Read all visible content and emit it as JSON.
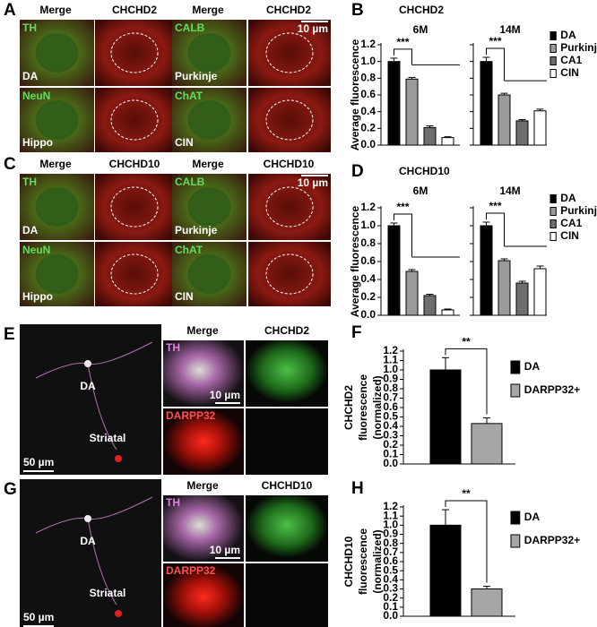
{
  "figures": [
    {
      "letter": "A",
      "headers": [
        "Merge",
        "CHCHD2",
        "Merge",
        "CHCHD2"
      ],
      "scale": "10 µm",
      "tiles": [
        {
          "stain": "TH",
          "cell": "DA"
        },
        {
          "stain": "CALB",
          "cell": "Purkinje"
        },
        {
          "stain": "NeuN",
          "cell": "Hippo"
        },
        {
          "stain": "ChAT",
          "cell": "CIN"
        }
      ]
    },
    {
      "letter": "C",
      "headers": [
        "Merge",
        "CHCHD10",
        "Merge",
        "CHCHD10"
      ],
      "scale": "10 µm",
      "tiles": [
        {
          "stain": "TH",
          "cell": "DA"
        },
        {
          "stain": "CALB",
          "cell": "Purkinje"
        },
        {
          "stain": "NeuN",
          "cell": "Hippo"
        },
        {
          "stain": "ChAT",
          "cell": "CIN"
        }
      ]
    },
    {
      "letter": "E",
      "labels": [
        "DA",
        "Striatal"
      ],
      "overview_scale": "50 µm",
      "headers": [
        "Merge",
        "CHCHD2"
      ],
      "stains": [
        "TH",
        "DARPP32"
      ],
      "scale": "10 µm"
    },
    {
      "letter": "G",
      "labels": [
        "DA",
        "Striatal"
      ],
      "overview_scale": "50 µm",
      "headers": [
        "Merge",
        "CHCHD10"
      ],
      "stains": [
        "TH",
        "DARPP32"
      ],
      "scale": "10 µm"
    }
  ],
  "chart_data": [
    {
      "type": "bar",
      "letter": "B",
      "title": "CHCHD2",
      "ylabel": "Average fluorescence",
      "categories": [
        "6M",
        "14M"
      ],
      "series": [
        {
          "name": "DA",
          "color": "#000000",
          "values": [
            1.0,
            1.0
          ],
          "errors": [
            0.04,
            0.05
          ]
        },
        {
          "name": "Purkinje",
          "color": "#9a9a9a",
          "values": [
            0.79,
            0.6
          ],
          "errors": [
            0.02,
            0.02
          ]
        },
        {
          "name": "CA1",
          "color": "#6e6e6e",
          "values": [
            0.21,
            0.29
          ],
          "errors": [
            0.02,
            0.015
          ]
        },
        {
          "name": "CIN",
          "color": "#ffffff",
          "values": [
            0.09,
            0.41
          ],
          "errors": [
            0.01,
            0.02
          ]
        }
      ],
      "ylim": [
        0,
        1.2
      ],
      "yticks": [
        {
          "value": 0,
          "label": "0.0"
        },
        0.2,
        0.4,
        0.6,
        0.8,
        {
          "value": 1,
          "label": "1.0"
        },
        1.2
      ],
      "annotations": [
        "***",
        "***"
      ]
    },
    {
      "type": "bar",
      "letter": "D",
      "title": "CHCHD10",
      "ylabel": "Average fluorescence",
      "categories": [
        "6M",
        "14M"
      ],
      "series": [
        {
          "name": "DA",
          "color": "#000000",
          "values": [
            1.0,
            1.0
          ],
          "errors": [
            0.03,
            0.04
          ]
        },
        {
          "name": "Purkinje",
          "color": "#9a9a9a",
          "values": [
            0.49,
            0.61
          ],
          "errors": [
            0.02,
            0.02
          ]
        },
        {
          "name": "CA1",
          "color": "#6e6e6e",
          "values": [
            0.22,
            0.36
          ],
          "errors": [
            0.015,
            0.02
          ]
        },
        {
          "name": "CIN",
          "color": "#ffffff",
          "values": [
            0.06,
            0.52
          ],
          "errors": [
            0.01,
            0.03
          ]
        }
      ],
      "ylim": [
        0,
        1.2
      ],
      "yticks": [
        {
          "value": 0,
          "label": "0.0"
        },
        0.2,
        0.4,
        0.6,
        0.8,
        {
          "value": 1,
          "label": "1.0"
        },
        1.2
      ],
      "annotations": [
        "***",
        "***"
      ]
    },
    {
      "type": "bar",
      "letter": "F",
      "ylabel": [
        "CHCHD2",
        "fluorescence",
        "(normalized)"
      ],
      "series": [
        {
          "name": "DA",
          "color": "#000000",
          "values": [
            1.0
          ],
          "errors": [
            0.13
          ]
        },
        {
          "name": "DARPP32+",
          "color": "#a6a6a6",
          "values": [
            0.43
          ],
          "errors": [
            0.06
          ]
        }
      ],
      "ylim": [
        0,
        1.2
      ],
      "yticks": [
        {
          "value": 0,
          "label": "0.0"
        },
        0.1,
        0.2,
        0.3,
        0.4,
        0.5,
        0.6,
        0.7,
        0.8,
        0.9,
        {
          "value": 1,
          "label": "1.0"
        },
        1.1,
        1.2
      ],
      "annotations": [
        "**"
      ]
    },
    {
      "type": "bar",
      "letter": "H",
      "ylabel": [
        "CHCHD10",
        "fluorescence",
        "(normalized)"
      ],
      "series": [
        {
          "name": "DA",
          "color": "#000000",
          "values": [
            1.0
          ],
          "errors": [
            0.17
          ]
        },
        {
          "name": "DARPP32+",
          "color": "#a6a6a6",
          "values": [
            0.3
          ],
          "errors": [
            0.03
          ]
        }
      ],
      "ylim": [
        0,
        1.2
      ],
      "yticks": [
        {
          "value": 0,
          "label": "0.0"
        },
        0.1,
        0.2,
        0.3,
        0.4,
        0.5,
        0.6,
        0.7,
        0.8,
        0.9,
        {
          "value": 1,
          "label": "1.0"
        },
        1.1,
        1.2
      ],
      "annotations": [
        "**"
      ]
    }
  ]
}
